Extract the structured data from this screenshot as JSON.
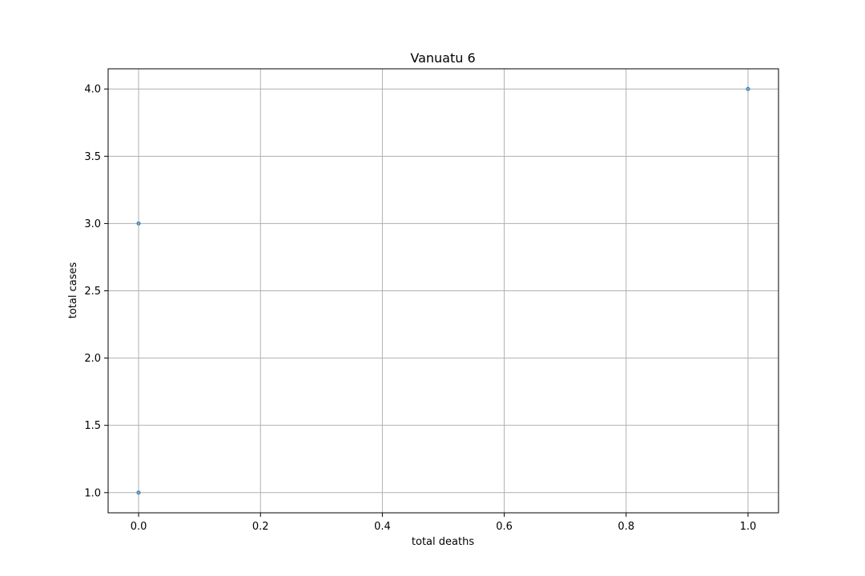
{
  "chart_data": {
    "type": "scatter",
    "title": "Vanuatu 6",
    "xlabel": "total deaths",
    "ylabel": "total cases",
    "xlim": [
      -0.05,
      1.05
    ],
    "ylim": [
      0.85,
      4.15
    ],
    "xticks": [
      0.0,
      0.2,
      0.4,
      0.6,
      0.8,
      1.0
    ],
    "xtick_labels": [
      "0.0",
      "0.2",
      "0.4",
      "0.6",
      "0.8",
      "1.0"
    ],
    "yticks": [
      1.0,
      1.5,
      2.0,
      2.5,
      3.0,
      3.5,
      4.0
    ],
    "ytick_labels": [
      "1.0",
      "1.5",
      "2.0",
      "2.5",
      "3.0",
      "3.5",
      "4.0"
    ],
    "grid": true,
    "legend": "none",
    "series": [
      {
        "color": "#1f77b4",
        "points": [
          {
            "x": 0,
            "y": 1
          },
          {
            "x": 0,
            "y": 3
          },
          {
            "x": 1,
            "y": 4
          }
        ]
      }
    ]
  }
}
